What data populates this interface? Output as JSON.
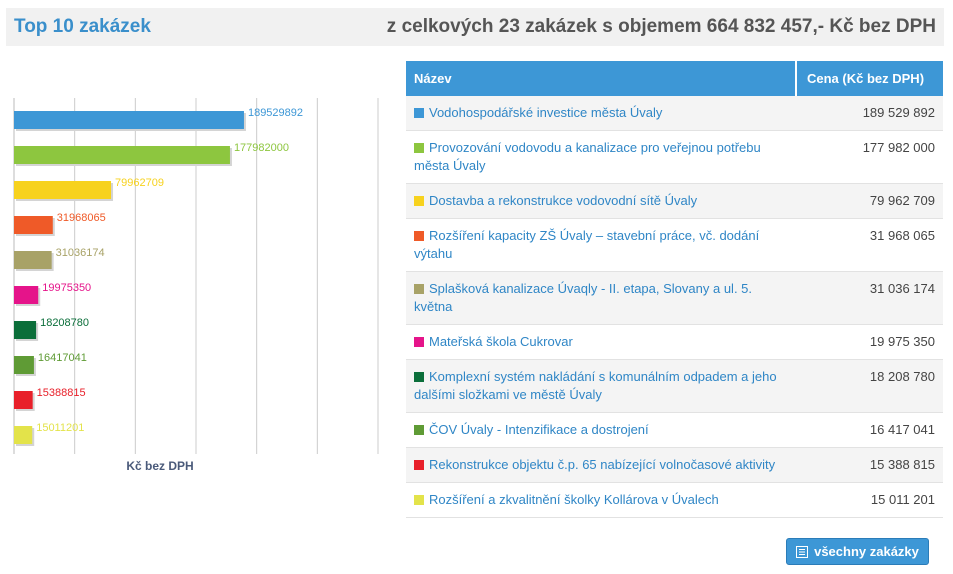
{
  "header": {
    "title": "Top 10 zakázek",
    "summary": "z celkových 23 zakázek s objemem 664 832 457,- Kč bez DPH"
  },
  "table": {
    "col_name": "Název",
    "col_price": "Cena (Kč bez DPH)",
    "rows": [
      {
        "name": "Vodohospodářské investice města Úvaly",
        "price": "189 529 892",
        "color": "#3d97d6"
      },
      {
        "name": "Provozování vodovodu a kanalizace pro veřejnou potřebu města Úvaly",
        "price": "177 982 000",
        "color": "#8dc63f"
      },
      {
        "name": "Dostavba a rekonstrukce vodovodní sítě Úvaly",
        "price": "79 962 709",
        "color": "#f7d21e"
      },
      {
        "name": "Rozšíření kapacity ZŠ Úvaly – stavební práce, vč. dodání výtahu",
        "price": "31 968 065",
        "color": "#ef5a28"
      },
      {
        "name": "Splašková kanalizace Úvaqly - II. etapa, Slovany a ul. 5. května",
        "price": "31 036 174",
        "color": "#a8a267"
      },
      {
        "name": "Mateřská škola Cukrovar",
        "price": "19 975 350",
        "color": "#e5148a"
      },
      {
        "name": "Komplexní systém nakládání s komunálním odpadem a jeho dalšími složkami ve městě Úvaly",
        "price": "18 208 780",
        "color": "#0b6e3a"
      },
      {
        "name": "ČOV Úvaly - Intenzifikace a dostrojení",
        "price": "16 417 041",
        "color": "#5f9b35"
      },
      {
        "name": "Rekonstrukce objektu č.p. 65 nabízející volnočasové aktivity",
        "price": "15 388 815",
        "color": "#e8202a"
      },
      {
        "name": "Rozšíření a zkvalitnění školky Kollárova v Úvalech",
        "price": "15 011 201",
        "color": "#e3e34a"
      }
    ]
  },
  "button": {
    "label": "všechny zakázky",
    "icon": "list-icon"
  },
  "chart_data": {
    "type": "bar",
    "orientation": "horizontal",
    "categories": [
      "Vodohospodářské investice města Úvaly",
      "Provozování vodovodu a kanalizace pro veřejnou potřebu města Úvaly",
      "Dostavba a rekonstrukce vodovodní sítě Úvaly",
      "Rozšíření kapacity ZŠ Úvaly – stavební práce, vč. dodání výtahu",
      "Splašková kanalizace Úvaqly - II. etapa, Slovany a ul. 5. května",
      "Mateřská škola Cukrovar",
      "Komplexní systém nakládání s komunálním odpadem a jeho dalšími složkami ve městě Úvaly",
      "ČOV Úvaly - Intenzifikace a dostrojení",
      "Rekonstrukce objektu č.p. 65 nabízející volnočasové aktivity",
      "Rozšíření a zkvalitnění školky Kollárova v Úvalech"
    ],
    "values": [
      189529892,
      177982000,
      79962709,
      31968065,
      31036174,
      19975350,
      18208780,
      16417041,
      15388815,
      15011201
    ],
    "colors": [
      "#3d97d6",
      "#8dc63f",
      "#f7d21e",
      "#ef5a28",
      "#a8a267",
      "#e5148a",
      "#0b6e3a",
      "#5f9b35",
      "#e8202a",
      "#e3e34a"
    ],
    "xlabel": "Kč bez DPH",
    "xlim": [
      0,
      300000000
    ],
    "grid": true,
    "data_labels": true
  }
}
